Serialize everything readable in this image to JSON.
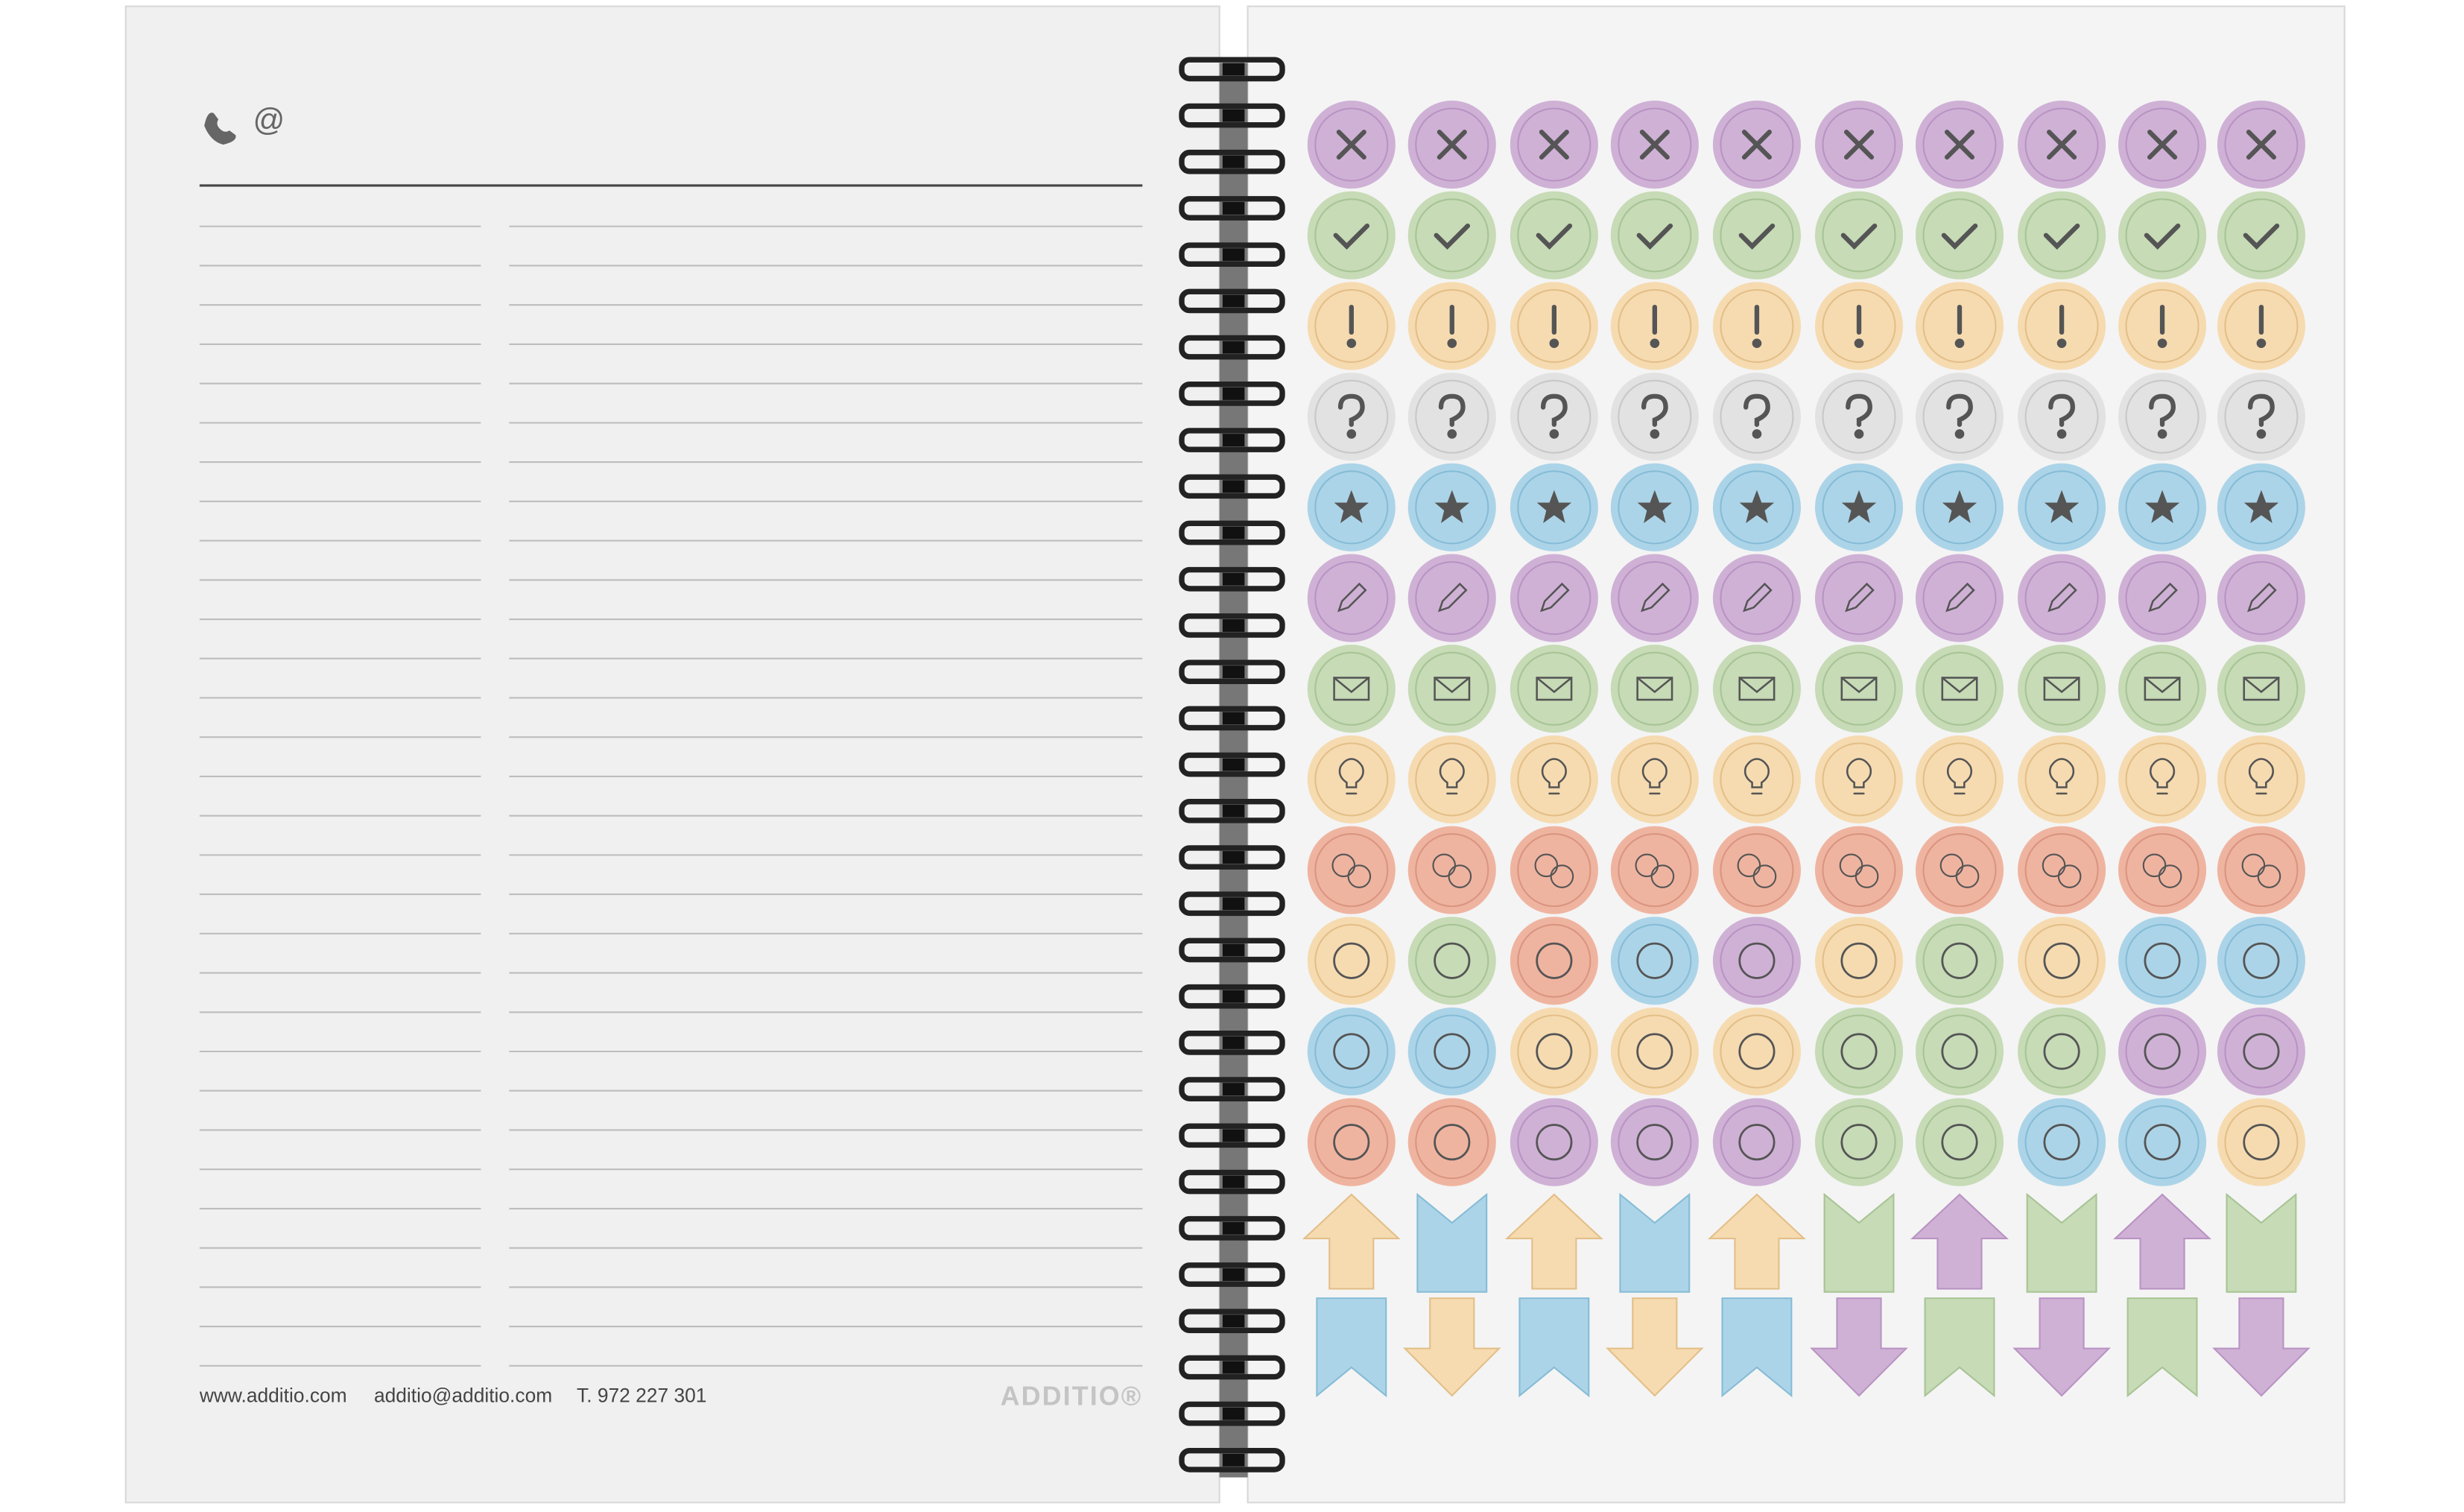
{
  "header": {
    "email_symbol": "@"
  },
  "footer": {
    "website": "www.additio.com",
    "email": "additio@additio.com",
    "phone": "T. 972 227 301",
    "brand": "ADDITIO®"
  }
}
